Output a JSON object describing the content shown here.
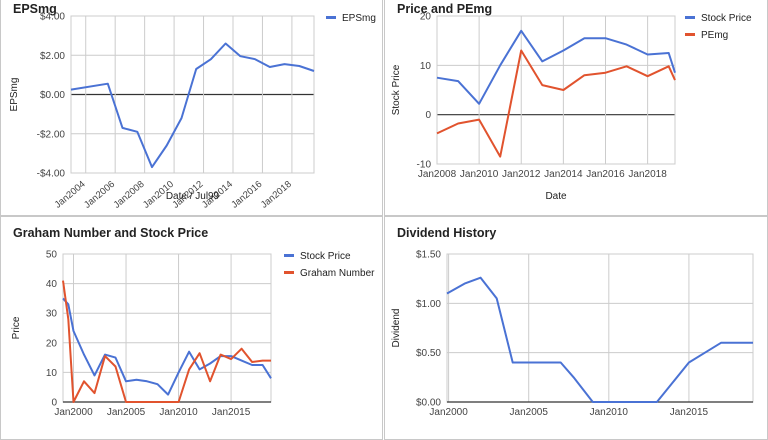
{
  "chart_data": [
    {
      "id": "eps",
      "type": "line",
      "title": "EPSmg",
      "xlabel": "Date / Jul99",
      "ylabel": "EPSmg",
      "x_ticks": [
        "Jan2004",
        "Jan2006",
        "Jan2008",
        "Jan2010",
        "Jan2012",
        "Jan2014",
        "Jan2016",
        "Jan2018"
      ],
      "x_range": [
        2003.0,
        2019.5
      ],
      "y_ticks": [
        "-$4.00",
        "-$2.00",
        "$0.00",
        "$2.00",
        "$4.00"
      ],
      "y_tick_values": [
        -4,
        -2,
        0,
        2,
        4
      ],
      "ylim": [
        -4,
        4
      ],
      "zero_line": true,
      "legend_position": "right",
      "series": [
        {
          "name": "EPSmg",
          "color": "#4a72d4",
          "x": [
            2003.0,
            2005.5,
            2006.5,
            2007.5,
            2008.5,
            2009.5,
            2010.5,
            2011.5,
            2012.5,
            2013.5,
            2014.5,
            2015.5,
            2016.5,
            2017.5,
            2018.5,
            2019.5
          ],
          "y": [
            0.25,
            0.55,
            -1.7,
            -1.9,
            -3.7,
            -2.6,
            -1.2,
            1.3,
            1.8,
            2.6,
            1.95,
            1.8,
            1.4,
            1.55,
            1.45,
            1.2
          ]
        }
      ]
    },
    {
      "id": "price_pe",
      "type": "line",
      "title": "Price and PEmg",
      "xlabel": "Date",
      "ylabel": "Stock Price",
      "x_ticks": [
        "Jan2008",
        "Jan2010",
        "Jan2012",
        "Jan2014",
        "Jan2016",
        "Jan2018"
      ],
      "x_range": [
        2008.0,
        2019.3
      ],
      "y_ticks": [
        "-10",
        "0",
        "10",
        "20"
      ],
      "y_tick_values": [
        -10,
        0,
        10,
        20
      ],
      "ylim": [
        -10,
        20
      ],
      "zero_line": true,
      "legend_position": "right",
      "series": [
        {
          "name": "Stock Price",
          "color": "#4a72d4",
          "x": [
            2008.0,
            2009.0,
            2010.0,
            2011.0,
            2012.0,
            2013.0,
            2014.0,
            2015.0,
            2016.0,
            2017.0,
            2018.0,
            2019.0,
            2019.3
          ],
          "y": [
            7.5,
            6.8,
            2.2,
            10.0,
            17.0,
            10.8,
            13.0,
            15.5,
            15.5,
            14.2,
            12.2,
            12.5,
            8.5
          ]
        },
        {
          "name": "PEmg",
          "color": "#e1532e",
          "x": [
            2008.0,
            2009.0,
            2010.0,
            2011.0,
            2012.0,
            2013.0,
            2014.0,
            2015.0,
            2016.0,
            2017.0,
            2018.0,
            2019.0,
            2019.3
          ],
          "y": [
            -3.8,
            -1.8,
            -1.0,
            -8.5,
            13.0,
            6.0,
            5.0,
            8.0,
            8.5,
            9.8,
            7.8,
            9.8,
            7.0
          ]
        }
      ]
    },
    {
      "id": "graham",
      "type": "line",
      "title": "Graham Number and Stock Price",
      "xlabel": "",
      "ylabel": "Price",
      "x_ticks": [
        "Jan2000",
        "Jan2005",
        "Jan2010",
        "Jan2015"
      ],
      "x_tick_values": [
        2000,
        2005,
        2010,
        2015
      ],
      "x_range": [
        1999.0,
        2018.8
      ],
      "y_ticks": [
        "0",
        "10",
        "20",
        "30",
        "40",
        "50"
      ],
      "y_tick_values": [
        0,
        10,
        20,
        30,
        40,
        50
      ],
      "ylim": [
        0,
        50
      ],
      "legend_position": "right",
      "series": [
        {
          "name": "Stock Price",
          "color": "#4a72d4",
          "x": [
            1999.0,
            1999.5,
            2000.0,
            2001.0,
            2002.0,
            2003.0,
            2004.0,
            2005.0,
            2006.0,
            2007.0,
            2008.0,
            2009.0,
            2010.0,
            2011.0,
            2012.0,
            2013.0,
            2014.0,
            2015.0,
            2016.0,
            2017.0,
            2018.0,
            2018.8
          ],
          "y": [
            35,
            33,
            24,
            16,
            9,
            16,
            15,
            7,
            7.5,
            7,
            6,
            2.5,
            10,
            17,
            11,
            13,
            15.5,
            15.5,
            14,
            12.5,
            12.5,
            8
          ]
        },
        {
          "name": "Graham Number",
          "color": "#e1532e",
          "x": [
            1999.0,
            1999.5,
            2000.0,
            2001.0,
            2002.0,
            2003.0,
            2004.0,
            2005.0,
            2006.0,
            2007.0,
            2008.0,
            2009.0,
            2010.0,
            2011.0,
            2012.0,
            2013.0,
            2014.0,
            2015.0,
            2016.0,
            2017.0,
            2018.0,
            2018.8
          ],
          "y": [
            41,
            28,
            0,
            7,
            3,
            15.5,
            12,
            0,
            0,
            0,
            0,
            0,
            0,
            11,
            16.5,
            7,
            16,
            14.5,
            18,
            13.5,
            14,
            14
          ]
        }
      ]
    },
    {
      "id": "dividend",
      "type": "line",
      "title": "Dividend History",
      "xlabel": "",
      "ylabel": "Dividend",
      "x_ticks": [
        "Jan2000",
        "Jan2005",
        "Jan2010",
        "Jan2015"
      ],
      "x_tick_values": [
        2000,
        2005,
        2010,
        2015
      ],
      "x_range": [
        1999.9,
        2019.0
      ],
      "y_ticks": [
        "$0.00",
        "$0.50",
        "$1.00",
        "$1.50"
      ],
      "y_tick_values": [
        0,
        0.5,
        1.0,
        1.5
      ],
      "ylim": [
        0,
        1.5
      ],
      "legend_position": "none",
      "series": [
        {
          "name": "",
          "color": "#4a72d4",
          "x": [
            1999.9,
            2001.0,
            2002.0,
            2003.0,
            2004.0,
            2005.0,
            2006.0,
            2007.0,
            2007.8,
            2009.0,
            2010.0,
            2011.0,
            2012.0,
            2013.0,
            2014.0,
            2015.0,
            2016.0,
            2017.0,
            2018.0,
            2019.0
          ],
          "y": [
            1.1,
            1.2,
            1.26,
            1.05,
            0.4,
            0.4,
            0.4,
            0.4,
            0.25,
            0.0,
            0.0,
            0.0,
            0.0,
            0.0,
            0.2,
            0.4,
            0.5,
            0.6,
            0.6,
            0.6
          ]
        }
      ]
    }
  ]
}
